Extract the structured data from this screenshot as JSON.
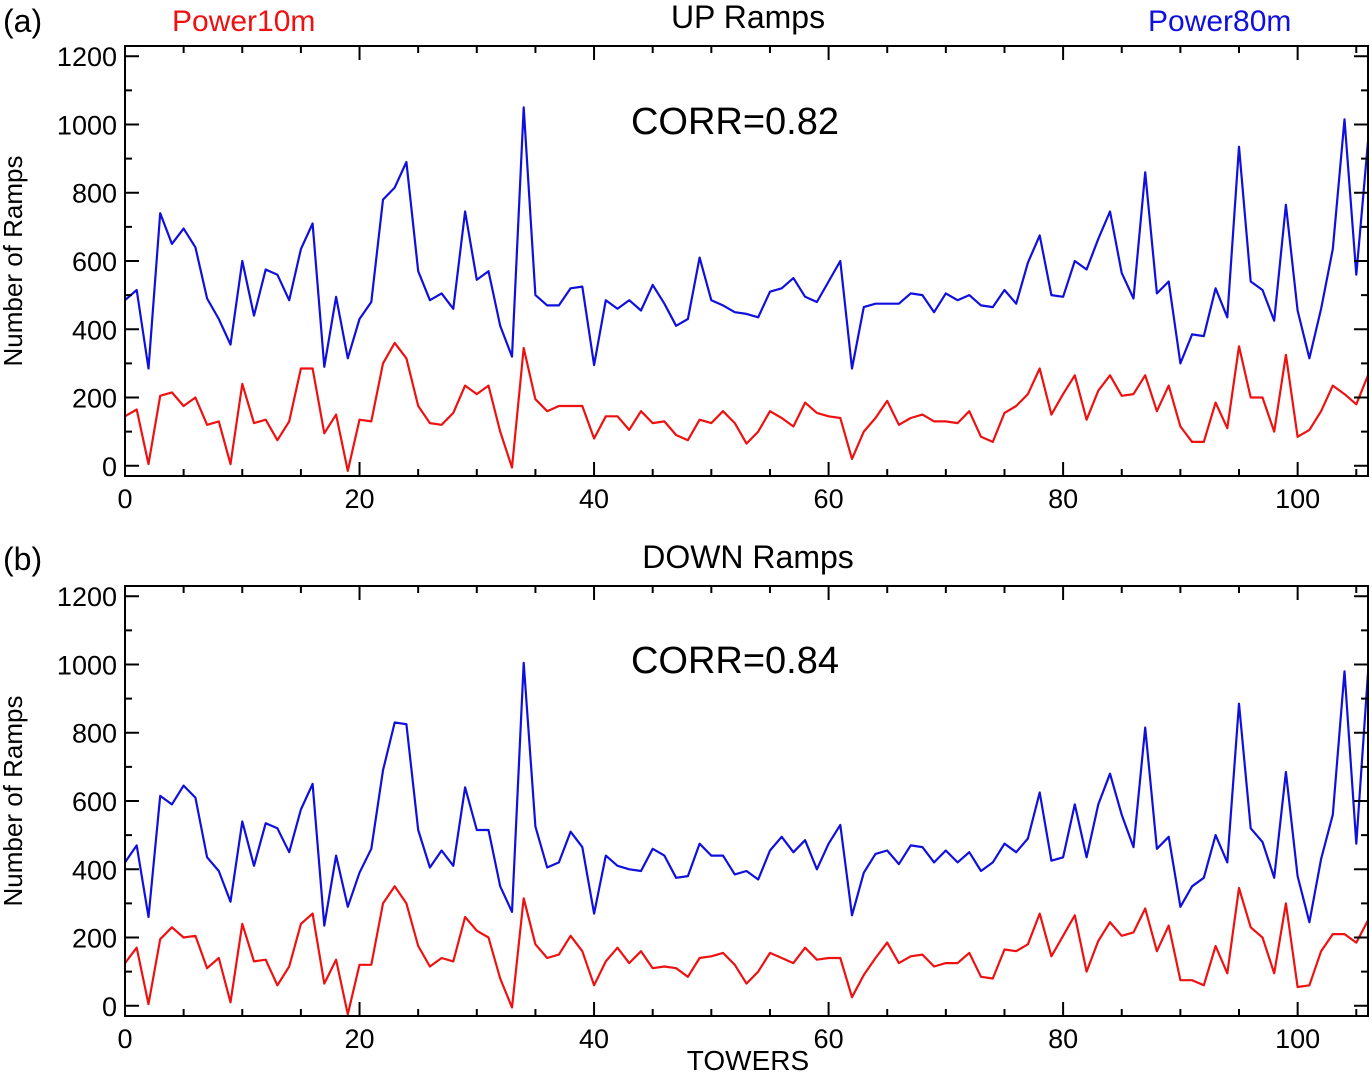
{
  "figure": {
    "xlabel": "TOWERS"
  },
  "legend": {
    "left": "Power10m",
    "right": "Power80m"
  },
  "colors": {
    "power10m": "#ee1111",
    "power80m": "#1010dd",
    "axis": "#000000"
  },
  "chart_data": [
    {
      "panel": "(a)",
      "type": "line",
      "title": "UP Ramps",
      "annotation": "CORR=0.82",
      "xlabel": "",
      "ylabel": "Number of Ramps",
      "xlim": [
        0,
        106
      ],
      "ylim": [
        -30,
        1230
      ],
      "xticks": [
        0,
        20,
        40,
        60,
        80,
        100
      ],
      "yticks": [
        0,
        200,
        400,
        600,
        800,
        1000,
        1200
      ],
      "series": [
        {
          "name": "Power80m",
          "color": "#1010dd",
          "values": [
            485,
            515,
            285,
            740,
            650,
            695,
            640,
            490,
            430,
            355,
            600,
            440,
            575,
            560,
            485,
            635,
            710,
            290,
            495,
            315,
            430,
            480,
            780,
            815,
            890,
            570,
            485,
            505,
            460,
            745,
            545,
            570,
            410,
            320,
            1050,
            500,
            470,
            470,
            520,
            525,
            295,
            485,
            460,
            485,
            455,
            530,
            475,
            410,
            430,
            610,
            485,
            470,
            450,
            445,
            435,
            510,
            520,
            550,
            495,
            480,
            540,
            600,
            285,
            465,
            475,
            475,
            475,
            505,
            500,
            450,
            505,
            485,
            500,
            470,
            465,
            515,
            475,
            595,
            675,
            500,
            495,
            600,
            575,
            665,
            745,
            565,
            490,
            860,
            505,
            540,
            300,
            385,
            380,
            520,
            435,
            935,
            540,
            515,
            425,
            765,
            455,
            315,
            460,
            635,
            1015,
            560,
            950
          ]
        },
        {
          "name": "Power10m",
          "color": "#ee1111",
          "values": [
            145,
            165,
            5,
            205,
            215,
            175,
            200,
            120,
            130,
            5,
            240,
            125,
            135,
            75,
            130,
            285,
            285,
            95,
            150,
            -15,
            135,
            130,
            300,
            360,
            315,
            175,
            125,
            120,
            155,
            235,
            210,
            235,
            100,
            -5,
            345,
            195,
            160,
            175,
            175,
            175,
            80,
            145,
            145,
            105,
            160,
            125,
            130,
            90,
            75,
            135,
            125,
            160,
            125,
            65,
            100,
            160,
            140,
            115,
            185,
            155,
            145,
            140,
            20,
            100,
            140,
            190,
            120,
            140,
            150,
            130,
            130,
            125,
            160,
            85,
            70,
            155,
            175,
            210,
            285,
            150,
            210,
            265,
            135,
            220,
            265,
            205,
            210,
            265,
            160,
            235,
            115,
            70,
            70,
            185,
            110,
            350,
            200,
            200,
            100,
            325,
            85,
            105,
            160,
            235,
            210,
            180,
            265
          ]
        }
      ]
    },
    {
      "panel": "(b)",
      "type": "line",
      "title": "DOWN Ramps",
      "annotation": "CORR=0.84",
      "xlabel": "TOWERS",
      "ylabel": "Number of Ramps",
      "xlim": [
        0,
        106
      ],
      "ylim": [
        -30,
        1230
      ],
      "xticks": [
        0,
        20,
        40,
        60,
        80,
        100
      ],
      "yticks": [
        0,
        200,
        400,
        600,
        800,
        1000,
        1200
      ],
      "series": [
        {
          "name": "Power80m",
          "color": "#1010dd",
          "values": [
            420,
            470,
            260,
            615,
            590,
            645,
            610,
            435,
            395,
            305,
            540,
            410,
            535,
            520,
            450,
            575,
            650,
            235,
            440,
            290,
            390,
            460,
            690,
            830,
            825,
            515,
            405,
            455,
            410,
            640,
            515,
            515,
            350,
            275,
            1005,
            525,
            405,
            420,
            510,
            465,
            270,
            440,
            410,
            400,
            395,
            460,
            440,
            375,
            380,
            475,
            440,
            440,
            385,
            395,
            370,
            455,
            495,
            450,
            485,
            400,
            475,
            530,
            265,
            390,
            445,
            455,
            415,
            470,
            465,
            420,
            455,
            420,
            450,
            395,
            420,
            475,
            450,
            490,
            625,
            425,
            435,
            590,
            435,
            590,
            680,
            560,
            465,
            815,
            460,
            495,
            290,
            350,
            375,
            500,
            420,
            885,
            520,
            480,
            375,
            685,
            380,
            245,
            430,
            560,
            980,
            475,
            975
          ]
        },
        {
          "name": "Power10m",
          "color": "#ee1111",
          "values": [
            125,
            170,
            5,
            195,
            230,
            200,
            205,
            110,
            140,
            10,
            240,
            130,
            135,
            60,
            115,
            240,
            270,
            65,
            135,
            -25,
            120,
            120,
            300,
            350,
            300,
            175,
            115,
            140,
            130,
            260,
            220,
            200,
            80,
            -5,
            315,
            180,
            140,
            150,
            205,
            160,
            60,
            130,
            170,
            125,
            160,
            110,
            115,
            110,
            85,
            140,
            145,
            155,
            120,
            65,
            100,
            155,
            140,
            125,
            170,
            135,
            140,
            140,
            25,
            90,
            140,
            185,
            125,
            145,
            150,
            115,
            125,
            125,
            155,
            85,
            80,
            165,
            160,
            180,
            270,
            145,
            205,
            265,
            100,
            190,
            245,
            205,
            215,
            285,
            160,
            235,
            75,
            75,
            60,
            175,
            95,
            345,
            230,
            200,
            95,
            300,
            55,
            60,
            160,
            210,
            210,
            185,
            250
          ]
        }
      ]
    }
  ]
}
